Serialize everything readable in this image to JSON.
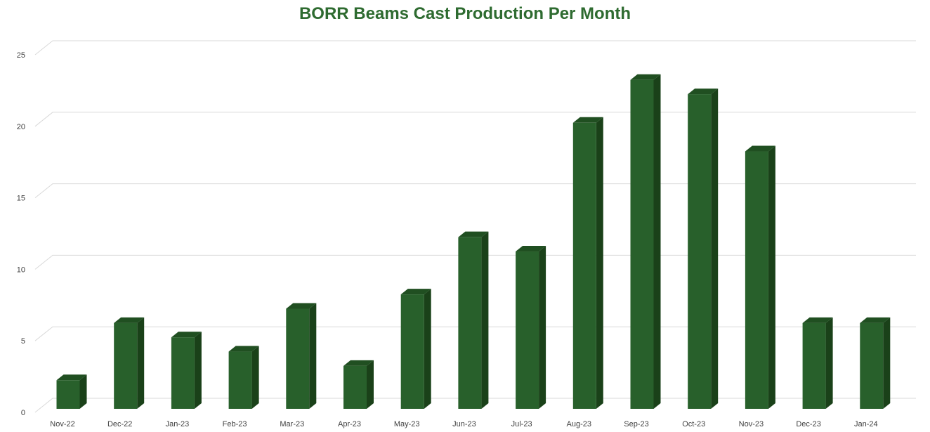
{
  "chart_data": {
    "type": "bar",
    "title": "BORR Beams Cast Production Per Month",
    "xlabel": "",
    "ylabel": "",
    "categories": [
      "Nov-22",
      "Dec-22",
      "Jan-23",
      "Feb-23",
      "Mar-23",
      "Apr-23",
      "May-23",
      "Jun-23",
      "Jul-23",
      "Aug-23",
      "Sep-23",
      "Oct-23",
      "Nov-23",
      "Dec-23",
      "Jan-24"
    ],
    "values": [
      2,
      6,
      5,
      4,
      7,
      3,
      8,
      12,
      11,
      20,
      23,
      22,
      18,
      6,
      6
    ],
    "ylim": [
      0,
      25
    ],
    "yticks": [
      "0",
      "5",
      "10",
      "15",
      "20",
      "25"
    ],
    "grid": true,
    "legend": "none",
    "style": "3d-column"
  },
  "colors": {
    "title": "#2e6b30",
    "bar_front": "#28602b",
    "bar_side": "#1a4119",
    "bar_top": "#204f21",
    "gridline": "#d9d9d9",
    "tick_text": "#404040"
  }
}
